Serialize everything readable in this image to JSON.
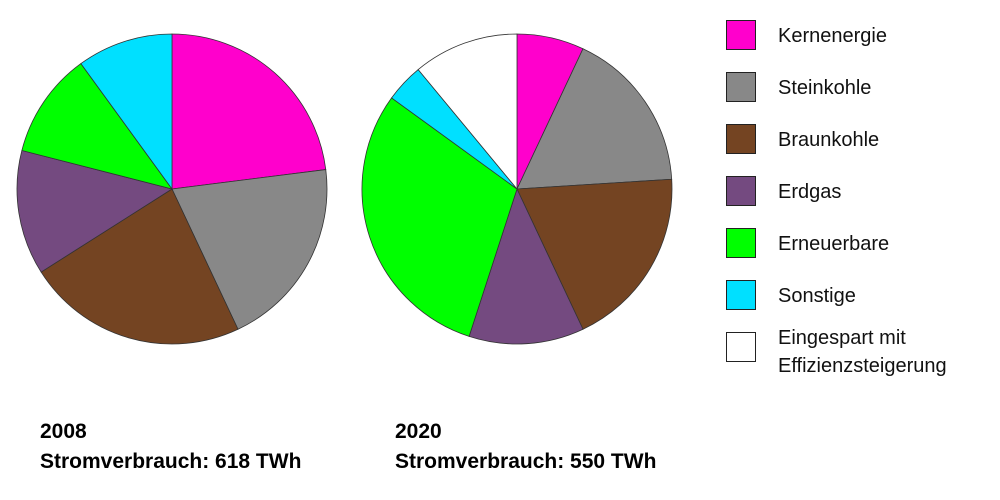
{
  "chart_data": [
    {
      "type": "pie",
      "title": "2008",
      "subtitle": "Stromverbrauch: 618 TWh",
      "categories": [
        "Kernenergie",
        "Steinkohle",
        "Braunkohle",
        "Erdgas",
        "Erneuerbare",
        "Sonstige"
      ],
      "values": [
        23,
        20,
        23,
        13,
        11,
        10
      ],
      "colors": [
        "#ff00cc",
        "#888888",
        "#744422",
        "#744a80",
        "#00ff00",
        "#00e0ff"
      ]
    },
    {
      "type": "pie",
      "title": "2020",
      "subtitle": "Stromverbrauch: 550 TWh",
      "categories": [
        "Kernenergie",
        "Steinkohle",
        "Braunkohle",
        "Erdgas",
        "Erneuerbare",
        "Sonstige",
        "Eingespart mit\nEffizienzsteigerung"
      ],
      "values": [
        7,
        17,
        19,
        12,
        30,
        4,
        11
      ],
      "colors": [
        "#ff00cc",
        "#888888",
        "#744422",
        "#744a80",
        "#00ff00",
        "#00e0ff",
        "#ffffff"
      ]
    }
  ]
}
